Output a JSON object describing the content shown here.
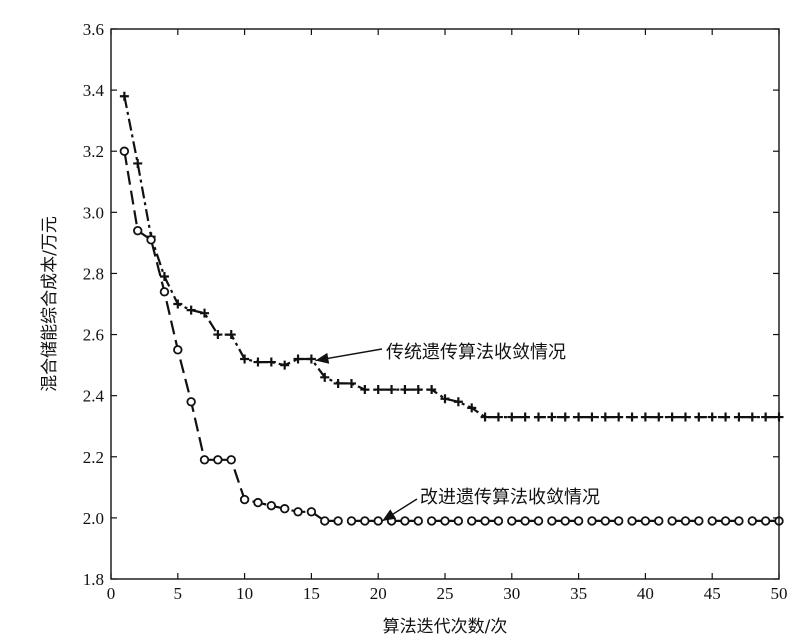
{
  "chart_data": {
    "type": "line",
    "title": "",
    "xlabel": "算法迭代次数/次",
    "ylabel": "混合储能综合成本/万元",
    "xlim": [
      0,
      50
    ],
    "ylim": [
      1.8,
      3.6
    ],
    "xticks": [
      0,
      5,
      10,
      15,
      20,
      25,
      30,
      35,
      40,
      45,
      50
    ],
    "yticks": [
      1.8,
      2.0,
      2.2,
      2.4,
      2.6,
      2.8,
      3.0,
      3.2,
      3.4,
      3.6
    ],
    "grid": false,
    "series": [
      {
        "name": "传统遗传算法收敛情况",
        "marker": "plus",
        "line_style": "dash-dot",
        "x": [
          1,
          2,
          3,
          4,
          5,
          6,
          7,
          8,
          9,
          10,
          11,
          12,
          13,
          14,
          15,
          16,
          17,
          18,
          19,
          20,
          21,
          22,
          23,
          24,
          25,
          26,
          27,
          28,
          29,
          30,
          31,
          32,
          33,
          34,
          35,
          36,
          37,
          38,
          39,
          40,
          41,
          42,
          43,
          44,
          45,
          46,
          47,
          48,
          49,
          50
        ],
        "y": [
          3.38,
          3.16,
          2.92,
          2.79,
          2.7,
          2.68,
          2.67,
          2.6,
          2.6,
          2.52,
          2.51,
          2.51,
          2.5,
          2.52,
          2.52,
          2.46,
          2.44,
          2.44,
          2.42,
          2.42,
          2.42,
          2.42,
          2.42,
          2.42,
          2.39,
          2.38,
          2.36,
          2.33,
          2.33,
          2.33,
          2.33,
          2.33,
          2.33,
          2.33,
          2.33,
          2.33,
          2.33,
          2.33,
          2.33,
          2.33,
          2.33,
          2.33,
          2.33,
          2.33,
          2.33,
          2.33,
          2.33,
          2.33,
          2.33,
          2.33
        ]
      },
      {
        "name": "改进遗传算法收敛情况",
        "marker": "circle",
        "line_style": "dashed",
        "x": [
          1,
          2,
          3,
          4,
          5,
          6,
          7,
          8,
          9,
          10,
          11,
          12,
          13,
          14,
          15,
          16,
          17,
          18,
          19,
          20,
          21,
          22,
          23,
          24,
          25,
          26,
          27,
          28,
          29,
          30,
          31,
          32,
          33,
          34,
          35,
          36,
          37,
          38,
          39,
          40,
          41,
          42,
          43,
          44,
          45,
          46,
          47,
          48,
          49,
          50
        ],
        "y": [
          3.2,
          2.94,
          2.91,
          2.74,
          2.55,
          2.38,
          2.19,
          2.19,
          2.19,
          2.06,
          2.05,
          2.04,
          2.03,
          2.02,
          2.02,
          1.99,
          1.99,
          1.99,
          1.99,
          1.99,
          1.99,
          1.99,
          1.99,
          1.99,
          1.99,
          1.99,
          1.99,
          1.99,
          1.99,
          1.99,
          1.99,
          1.99,
          1.99,
          1.99,
          1.99,
          1.99,
          1.99,
          1.99,
          1.99,
          1.99,
          1.99,
          1.99,
          1.99,
          1.99,
          1.99,
          1.99,
          1.99,
          1.99,
          1.99,
          1.99
        ]
      }
    ],
    "annotations": [
      {
        "text": "传统遗传算法收敛情况",
        "series": 0,
        "arrow_to": [
          15.3,
          2.515
        ]
      },
      {
        "text": "改进遗传算法收敛情况",
        "series": 1,
        "arrow_to": [
          20.3,
          1.99
        ]
      }
    ]
  }
}
